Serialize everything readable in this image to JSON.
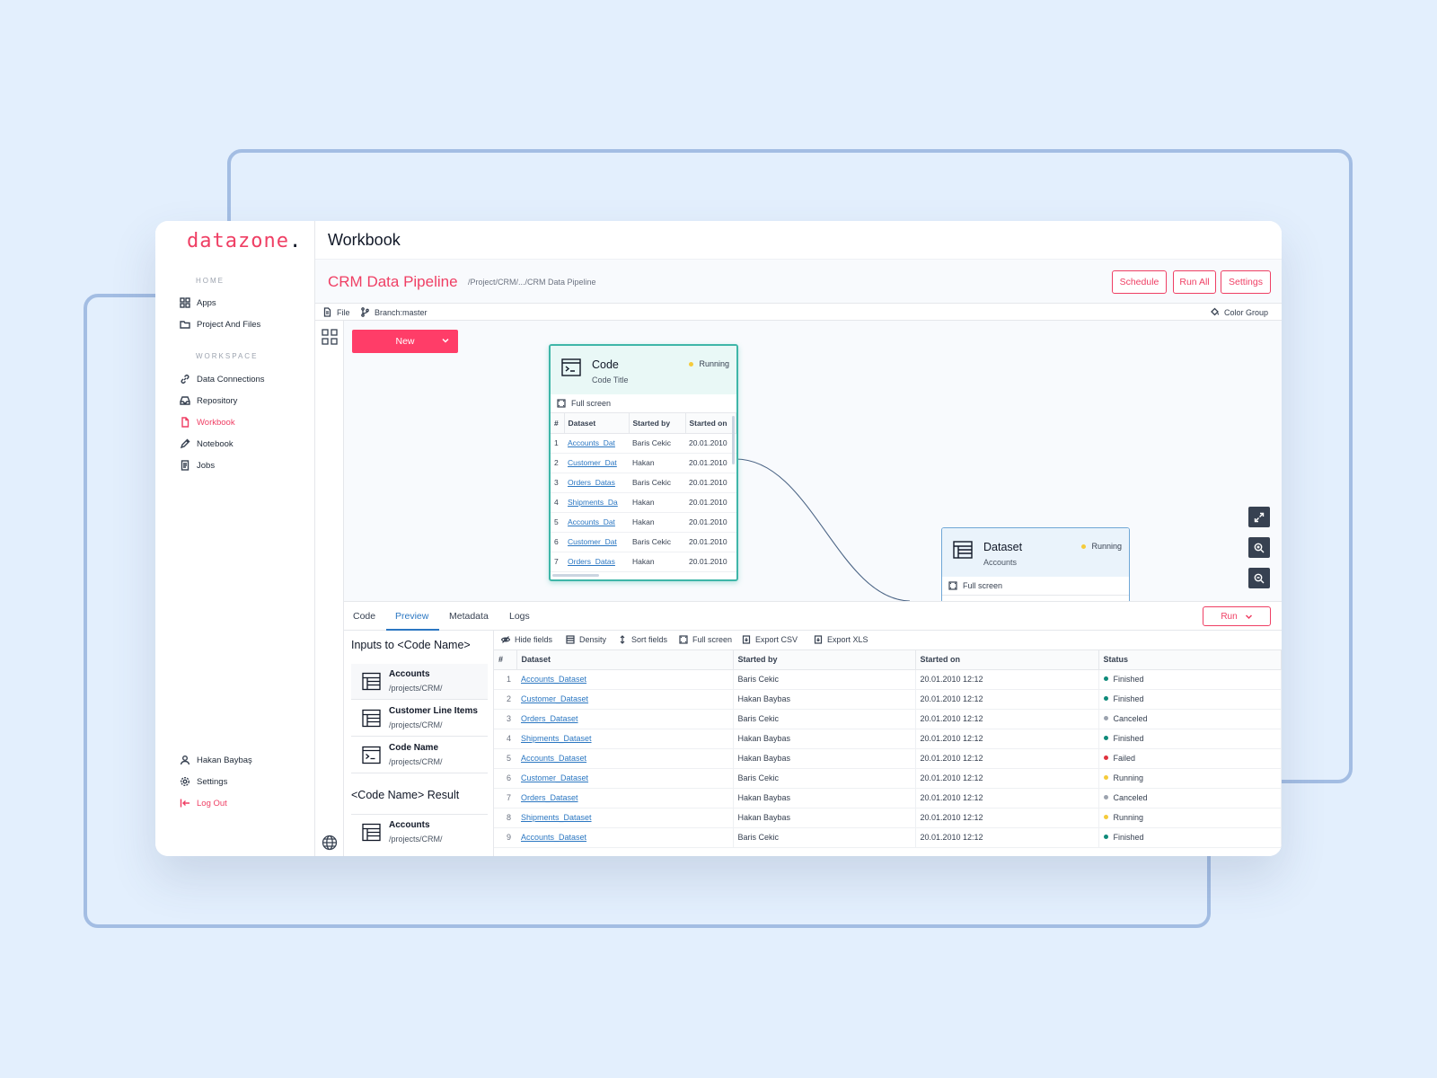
{
  "brand": {
    "name": "datazone",
    "dot": "."
  },
  "sidebar": {
    "home_label": "HOME",
    "workspace_label": "WORKSPACE",
    "home_items": [
      {
        "label": "Apps",
        "icon": "grid-icon"
      },
      {
        "label": "Project And Files",
        "icon": "folder-icon"
      }
    ],
    "workspace_items": [
      {
        "label": "Data Connections",
        "icon": "link-icon"
      },
      {
        "label": "Repository",
        "icon": "inbox-icon"
      },
      {
        "label": "Workbook",
        "icon": "file-icon",
        "active": true
      },
      {
        "label": "Notebook",
        "icon": "pencil-icon"
      },
      {
        "label": "Jobs",
        "icon": "document-icon"
      }
    ],
    "user": "Hakan Baybaş",
    "settings": "Settings",
    "logout": "Log Out"
  },
  "header": {
    "title": "Workbook",
    "pipeline_title": "CRM Data Pipeline",
    "breadcrumb": "/Project/CRM/.../CRM Data Pipeline",
    "buttons": [
      "Schedule",
      "Run All",
      "Settings"
    ]
  },
  "toolbar": {
    "file": "File",
    "branch": "Branch:master",
    "color_group": "Color Group"
  },
  "canvas": {
    "new_button": "New",
    "code_node": {
      "title": "Code",
      "subtitle": "Code Title",
      "status": "Running",
      "full_screen": "Full screen",
      "columns": [
        "#",
        "Dataset",
        "Started by",
        "Started on"
      ],
      "rows": [
        [
          "1",
          "Accounts_Dat",
          "Baris Cekic",
          "20.01.2010"
        ],
        [
          "2",
          "Customer_Dat",
          "Hakan",
          "20.01.2010"
        ],
        [
          "3",
          "Orders_Datas",
          "Baris Cekic",
          "20.01.2010"
        ],
        [
          "4",
          "Shipments_Da",
          "Hakan",
          "20.01.2010"
        ],
        [
          "5",
          "Accounts_Dat",
          "Hakan",
          "20.01.2010"
        ],
        [
          "6",
          "Customer_Dat",
          "Baris Cekic",
          "20.01.2010"
        ],
        [
          "7",
          "Orders_Datas",
          "Hakan",
          "20.01.2010"
        ]
      ]
    },
    "dataset_node": {
      "title": "Dataset",
      "subtitle": "Accounts",
      "status": "Running",
      "full_screen": "Full screen"
    }
  },
  "bottom": {
    "tabs": [
      "Code",
      "Preview",
      "Metadata",
      "Logs"
    ],
    "active_tab": "Preview",
    "run_button": "Run",
    "inputs_title": "Inputs to <Code Name>",
    "inputs": [
      {
        "name": "Accounts",
        "path": "/projects/CRM/",
        "icon": "table-icon"
      },
      {
        "name": "Customer Line Items",
        "path": "/projects/CRM/",
        "icon": "table-icon"
      },
      {
        "name": "Code Name",
        "path": "/projects/CRM/",
        "icon": "terminal-icon"
      }
    ],
    "result_title": "<Code Name> Result",
    "results": [
      {
        "name": "Accounts",
        "path": "/projects/CRM/",
        "icon": "table-icon"
      }
    ],
    "grid_tools": [
      "Hide fields",
      "Density",
      "Sort fields",
      "Full screen",
      "Export CSV",
      "Export XLS"
    ],
    "columns": [
      "#",
      "Dataset",
      "Started by",
      "Started on",
      "Status"
    ],
    "status_colors": {
      "Finished": "#0f8a7a",
      "Canceled": "#9ca3af",
      "Failed": "#e0323e",
      "Running": "#f5cb3b"
    },
    "rows": [
      [
        "1",
        "Accounts_Dataset",
        "Baris Cekic",
        "20.01.2010 12:12",
        "Finished"
      ],
      [
        "2",
        "Customer_Dataset",
        "Hakan Baybas",
        "20.01.2010 12:12",
        "Finished"
      ],
      [
        "3",
        "Orders_Dataset",
        "Baris Cekic",
        "20.01.2010 12:12",
        "Canceled"
      ],
      [
        "4",
        "Shipments_Dataset",
        "Hakan Baybas",
        "20.01.2010 12:12",
        "Finished"
      ],
      [
        "5",
        "Accounts_Dataset",
        "Hakan Baybas",
        "20.01.2010 12:12",
        "Failed"
      ],
      [
        "6",
        "Customer_Dataset",
        "Baris Cekic",
        "20.01.2010 12:12",
        "Running"
      ],
      [
        "7",
        "Orders_Dataset",
        "Hakan Baybas",
        "20.01.2010 12:12",
        "Canceled"
      ],
      [
        "8",
        "Shipments_Dataset",
        "Hakan Baybas",
        "20.01.2010 12:12",
        "Running"
      ],
      [
        "9",
        "Accounts_Dataset",
        "Baris Cekic",
        "20.01.2010 12:12",
        "Finished"
      ]
    ]
  },
  "colors": {
    "accent": "#ef3f64",
    "link": "#2b77c2",
    "node_border": "#3fb6a8"
  }
}
